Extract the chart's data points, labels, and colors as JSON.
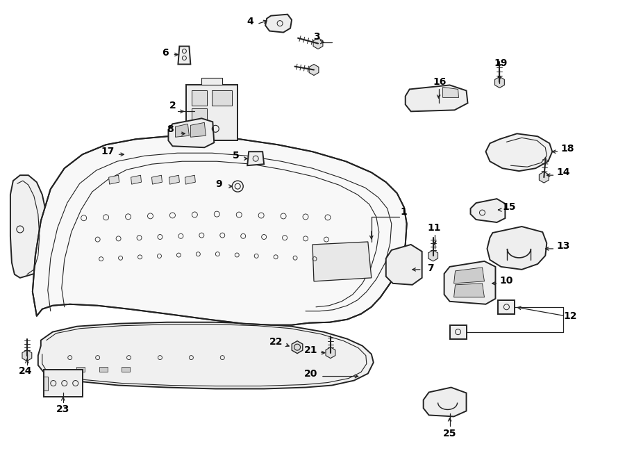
{
  "background_color": "#ffffff",
  "line_color": "#222222",
  "figure_width": 9.0,
  "figure_height": 6.62,
  "dpi": 100,
  "label_fontsize": 10,
  "arrow_lw": 0.9,
  "main_lw": 1.4,
  "detail_lw": 0.8,
  "bumper_face_color": "#f8f8f8",
  "part_face_color": "#eeeeee"
}
